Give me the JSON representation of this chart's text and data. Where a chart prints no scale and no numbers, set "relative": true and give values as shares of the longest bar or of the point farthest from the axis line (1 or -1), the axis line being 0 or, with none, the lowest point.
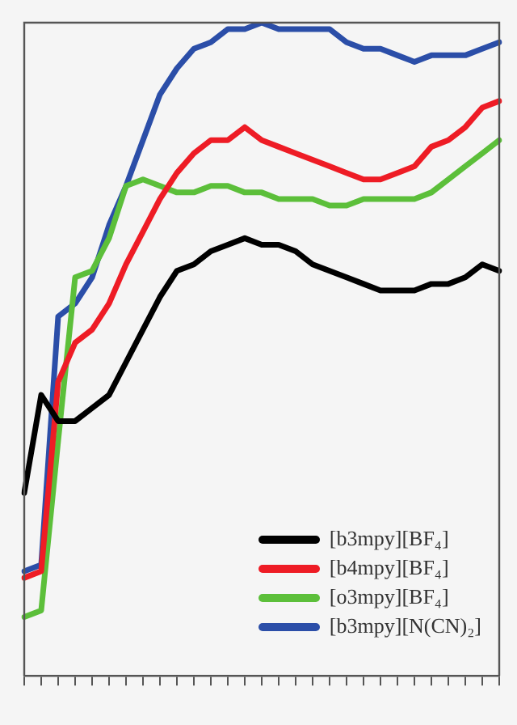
{
  "chart_data": {
    "type": "line",
    "relative": true,
    "legend": "bottom right",
    "marker": "none",
    "line_style": "solid",
    "grid": false,
    "categories": [
      null,
      null,
      null,
      null,
      null,
      null,
      null,
      null,
      null,
      null,
      null,
      null,
      null,
      null,
      null,
      null,
      null,
      null,
      null,
      null,
      null,
      null,
      null,
      null,
      null,
      null,
      null,
      null,
      null
    ],
    "series": [
      {
        "name": "[b3mpy][BF₄]",
        "color": "#000000",
        "values": [
          0.28,
          0.43,
          0.39,
          0.39,
          0.41,
          0.43,
          0.48,
          0.53,
          0.58,
          0.62,
          0.63,
          0.65,
          0.66,
          0.67,
          0.66,
          0.66,
          0.65,
          0.63,
          0.62,
          0.61,
          0.6,
          0.59,
          0.59,
          0.59,
          0.6,
          0.6,
          0.61,
          0.63,
          0.62
        ]
      },
      {
        "name": "[b4mpy][BF₄]",
        "color": "#ee1c25",
        "values": [
          0.15,
          0.16,
          0.45,
          0.51,
          0.53,
          0.57,
          0.63,
          0.68,
          0.73,
          0.77,
          0.8,
          0.82,
          0.82,
          0.84,
          0.82,
          0.81,
          0.8,
          0.79,
          0.78,
          0.77,
          0.76,
          0.76,
          0.77,
          0.78,
          0.81,
          0.82,
          0.84,
          0.87,
          0.88
        ]
      },
      {
        "name": "[o3mpy][BF₄]",
        "color": "#5cbf3a",
        "values": [
          0.09,
          0.1,
          0.36,
          0.61,
          0.62,
          0.67,
          0.75,
          0.76,
          0.75,
          0.74,
          0.74,
          0.75,
          0.75,
          0.74,
          0.74,
          0.73,
          0.73,
          0.73,
          0.72,
          0.72,
          0.73,
          0.73,
          0.73,
          0.73,
          0.74,
          0.76,
          0.78,
          0.8,
          0.82
        ]
      },
      {
        "name": "[b3mpy][N(CN)₂]",
        "color": "#2b4ea8",
        "values": [
          0.16,
          0.17,
          0.55,
          0.57,
          0.61,
          0.69,
          0.75,
          0.82,
          0.89,
          0.93,
          0.96,
          0.97,
          0.99,
          0.99,
          1.0,
          0.99,
          0.99,
          0.99,
          0.99,
          0.97,
          0.96,
          0.96,
          0.95,
          0.94,
          0.95,
          0.95,
          0.95,
          0.96,
          0.97
        ]
      }
    ]
  }
}
